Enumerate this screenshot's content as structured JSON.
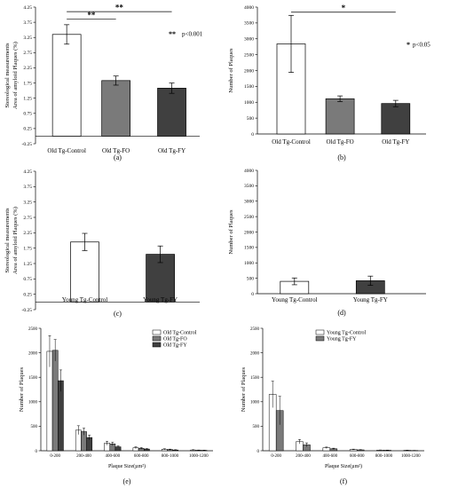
{
  "chart_data": [
    {
      "id": "a",
      "type": "bar",
      "panel_label": "(a)",
      "ylabel_lines": [
        "Stereological measurements",
        "Area of amyloid Plaques (%)"
      ],
      "ylim": [
        -0.25,
        4.25
      ],
      "yticks": [
        "-0.25",
        "0.25",
        "0.75",
        "1.25",
        "1.75",
        "2.25",
        "2.75",
        "3.25",
        "3.75",
        "4.25"
      ],
      "ytick_values": [
        -0.25,
        0.25,
        0.75,
        1.25,
        1.75,
        2.25,
        2.75,
        3.25,
        3.75,
        4.25
      ],
      "categories": [
        "Old Tg-Control",
        "Old Tg-FO",
        "Old Tg-FY"
      ],
      "values": [
        3.35,
        1.83,
        1.58
      ],
      "errors": [
        0.32,
        0.15,
        0.17
      ],
      "colors": [
        "#ffffff",
        "#7a7a7a",
        "#404040"
      ],
      "significance": [
        {
          "from": 0,
          "to": 2,
          "label": "**",
          "y": 4.1
        },
        {
          "from": 0,
          "to": 1,
          "label": "**",
          "y": 3.85
        }
      ],
      "annotation": {
        "stars": "**",
        "text": "p<0.001"
      }
    },
    {
      "id": "b",
      "type": "bar",
      "panel_label": "(b)",
      "ylabel_lines": [
        "Number of Plaques"
      ],
      "ylim": [
        0,
        4000
      ],
      "yticks": [
        "0",
        "500",
        "1000",
        "1500",
        "2000",
        "2500",
        "3000",
        "3500",
        "4000"
      ],
      "ytick_values": [
        0,
        500,
        1000,
        1500,
        2000,
        2500,
        3000,
        3500,
        4000
      ],
      "categories": [
        "Old Tg-Control",
        "Old Tg-FO",
        "Old Tg-FY"
      ],
      "values": [
        2840,
        1110,
        960
      ],
      "errors": [
        900,
        90,
        100
      ],
      "colors": [
        "#ffffff",
        "#7a7a7a",
        "#404040"
      ],
      "significance": [
        {
          "from": 0,
          "to": 2,
          "label": "*",
          "y": 3840
        }
      ],
      "annotation": {
        "stars": "*",
        "text": "p<0.05"
      }
    },
    {
      "id": "c",
      "type": "bar",
      "panel_label": "(c)",
      "ylabel_lines": [
        "Stereological measurements",
        "Area of amyloid Plaques (%)"
      ],
      "ylim": [
        -0.25,
        4.25
      ],
      "yticks": [
        "-0.25",
        "0.25",
        "0.75",
        "1.25",
        "1.75",
        "2.25",
        "2.75",
        "3.25",
        "3.75",
        "4.25"
      ],
      "ytick_values": [
        -0.25,
        0.25,
        0.75,
        1.25,
        1.75,
        2.25,
        2.75,
        3.25,
        3.75,
        4.25
      ],
      "categories": [
        "Young Tg-Control",
        "Young Tg-FY"
      ],
      "values": [
        1.95,
        1.55
      ],
      "errors": [
        0.28,
        0.27
      ],
      "colors": [
        "#ffffff",
        "#404040"
      ],
      "significance": []
    },
    {
      "id": "d",
      "type": "bar",
      "panel_label": "(d)",
      "ylabel_lines": [
        "Number of Plaques"
      ],
      "ylim": [
        0,
        4000
      ],
      "yticks": [
        "0",
        "500",
        "1000",
        "1500",
        "2000",
        "2500",
        "3000",
        "3500",
        "4000"
      ],
      "ytick_values": [
        0,
        500,
        1000,
        1500,
        2000,
        2500,
        3000,
        3500,
        4000
      ],
      "categories": [
        "Young Tg-Control",
        "Young Tg-FY"
      ],
      "values": [
        400,
        420
      ],
      "errors": [
        110,
        150
      ],
      "colors": [
        "#ffffff",
        "#404040"
      ],
      "significance": []
    },
    {
      "id": "e",
      "type": "bar",
      "panel_label": "(e)",
      "ylabel_lines": [
        "Number of Plaques"
      ],
      "xlabel": "Plaque Size(µm²)",
      "ylim": [
        0,
        2500
      ],
      "yticks": [
        "0",
        "500",
        "1000",
        "1500",
        "2000",
        "2500"
      ],
      "ytick_values": [
        0,
        500,
        1000,
        1500,
        2000,
        2500
      ],
      "categories": [
        "0-200",
        "200-400",
        "400-600",
        "600-800",
        "800-1000",
        "1000-1200"
      ],
      "series": [
        {
          "name": "Old Tg-Control",
          "color": "#ffffff",
          "values": [
            2030,
            420,
            155,
            60,
            30,
            15
          ],
          "errors": [
            320,
            90,
            40,
            20,
            10,
            6
          ]
        },
        {
          "name": "Old Tg-FO",
          "color": "#7a7a7a",
          "values": [
            2050,
            390,
            140,
            50,
            25,
            10
          ],
          "errors": [
            220,
            70,
            35,
            15,
            8,
            5
          ]
        },
        {
          "name": "Old Tg-FY",
          "color": "#404040",
          "values": [
            1430,
            270,
            80,
            35,
            15,
            8
          ],
          "errors": [
            220,
            50,
            20,
            10,
            6,
            4
          ]
        }
      ],
      "legend_position": "top-right"
    },
    {
      "id": "f",
      "type": "bar",
      "panel_label": "(f)",
      "ylabel_lines": [
        "Number of Plaques"
      ],
      "xlabel": "Plaque Size(µm²)",
      "ylim": [
        0,
        2500
      ],
      "yticks": [
        "0",
        "500",
        "1000",
        "1500",
        "2000",
        "2500"
      ],
      "ytick_values": [
        0,
        500,
        1000,
        1500,
        2000,
        2500
      ],
      "categories": [
        "0-200",
        "200-400",
        "400-600",
        "600-800",
        "800-1000",
        "1000-1200"
      ],
      "series": [
        {
          "name": "Young Tg-Control",
          "color": "#ffffff",
          "values": [
            1150,
            185,
            60,
            25,
            12,
            8
          ],
          "errors": [
            270,
            45,
            15,
            8,
            4,
            3
          ]
        },
        {
          "name": "Young Tg-FY",
          "color": "#7a7a7a",
          "values": [
            820,
            120,
            40,
            18,
            10,
            5
          ],
          "errors": [
            290,
            40,
            12,
            6,
            4,
            2
          ]
        }
      ],
      "legend_position": "top-right"
    }
  ]
}
